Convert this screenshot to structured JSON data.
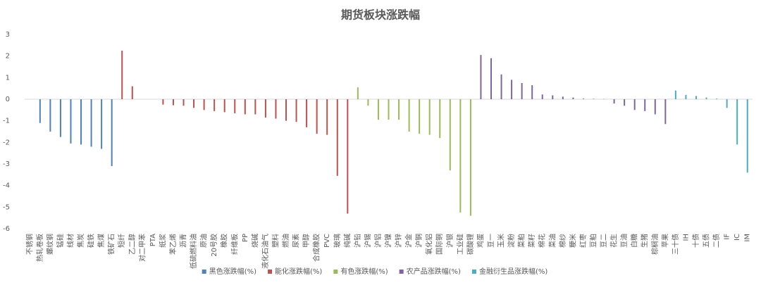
{
  "chart_data": {
    "type": "bar",
    "title": "期货板块涨跌幅",
    "categories": [
      "不锈钢",
      "热轧卷板",
      "螺纹钢",
      "锰硅",
      "线材",
      "焦炭",
      "硅铁",
      "焦煤",
      "铁矿石",
      "短纤",
      "乙二醇",
      "对二甲苯",
      "PTA",
      "纸浆",
      "苯乙烯",
      "沥青",
      "低硫燃料油",
      "原油",
      "20号胶",
      "橡胶",
      "纤维板",
      "PP",
      "烧碱",
      "液化石油气",
      "塑料",
      "燃油",
      "尿素",
      "甲醇",
      "合成橡胶",
      "PVC",
      "玻璃",
      "纯碱",
      "沪铅",
      "沪锡",
      "沪铝",
      "沪镍",
      "沪锌",
      "沪金",
      "沪铜",
      "氧化铝",
      "国际铜",
      "沪银",
      "工业硅",
      "碳酸锂",
      "鸡蛋",
      "豆一",
      "玉米",
      "淀粉",
      "菜粕",
      "菜籽",
      "棉花",
      "菜油",
      "棉纱",
      "粳米",
      "红枣",
      "豆粕",
      "豆二",
      "花生",
      "豆油",
      "白糖",
      "生猪",
      "棕榈油",
      "苹果",
      "三十债",
      "IH",
      "十债",
      "五债",
      "二债",
      "IF",
      "IC",
      "IM"
    ],
    "series": [
      {
        "name": "黑色涨跌幅(%)",
        "color": "#4f81bd",
        "values": [
          0,
          -1.1,
          -1.5,
          -1.75,
          -2.05,
          -2.1,
          -2.2,
          -2.3,
          -3.1,
          null,
          null,
          null,
          null,
          null,
          null,
          null,
          null,
          null,
          null,
          null,
          null,
          null,
          null,
          null,
          null,
          null,
          null,
          null,
          null,
          null,
          null,
          null,
          null,
          null,
          null,
          null,
          null,
          null,
          null,
          null,
          null,
          null,
          null,
          null,
          null,
          null,
          null,
          null,
          null,
          null,
          null,
          null,
          null,
          null,
          null,
          null,
          null,
          null,
          null,
          null,
          null,
          null,
          null,
          null,
          null,
          null,
          null,
          null,
          null,
          null,
          null
        ]
      },
      {
        "name": "能化涨跌幅(%)",
        "color": "#c0504d",
        "values": [
          null,
          null,
          null,
          null,
          null,
          null,
          null,
          null,
          null,
          2.25,
          0.6,
          0,
          0,
          -0.25,
          -0.28,
          -0.3,
          -0.4,
          -0.5,
          -0.55,
          -0.6,
          -0.65,
          -0.7,
          -0.7,
          -0.85,
          -0.9,
          -1.0,
          -1.05,
          -1.3,
          -1.6,
          -1.65,
          -3.55,
          -5.3,
          null,
          null,
          null,
          null,
          null,
          null,
          null,
          null,
          null,
          null,
          null,
          null,
          null,
          null,
          null,
          null,
          null,
          null,
          null,
          null,
          null,
          null,
          null,
          null,
          null,
          null,
          null,
          null,
          null,
          null,
          null,
          null,
          null,
          null,
          null,
          null,
          null,
          null,
          null
        ]
      },
      {
        "name": "有色涨跌幅(%)",
        "color": "#9bbb59",
        "values": [
          null,
          null,
          null,
          null,
          null,
          null,
          null,
          null,
          null,
          null,
          null,
          null,
          null,
          null,
          null,
          null,
          null,
          null,
          null,
          null,
          null,
          null,
          null,
          null,
          null,
          null,
          null,
          null,
          null,
          null,
          null,
          null,
          0.55,
          -0.3,
          -0.95,
          -0.95,
          -0.95,
          -1.5,
          -1.6,
          -1.65,
          -1.8,
          -3.3,
          -5.25,
          -5.4,
          null,
          null,
          null,
          null,
          null,
          null,
          null,
          null,
          null,
          null,
          null,
          null,
          null,
          null,
          null,
          null,
          null,
          null,
          null,
          null,
          null,
          null,
          null,
          null,
          null,
          null,
          null
        ]
      },
      {
        "name": "农产品涨跌幅(%)",
        "color": "#8064a2",
        "values": [
          null,
          null,
          null,
          null,
          null,
          null,
          null,
          null,
          null,
          null,
          null,
          null,
          null,
          null,
          null,
          null,
          null,
          null,
          null,
          null,
          null,
          null,
          null,
          null,
          null,
          null,
          null,
          null,
          null,
          null,
          null,
          null,
          null,
          null,
          null,
          null,
          null,
          null,
          null,
          null,
          null,
          null,
          null,
          null,
          2.05,
          1.9,
          1.15,
          0.9,
          0.75,
          0.65,
          0.22,
          0.18,
          0.12,
          0.08,
          0.03,
          0.02,
          0.01,
          -0.2,
          -0.3,
          -0.5,
          -0.55,
          -0.7,
          -1.15,
          null,
          null,
          null,
          null,
          null,
          null,
          null,
          null
        ]
      },
      {
        "name": "金融衍生品涨跌幅(%)",
        "color": "#4bacc6",
        "values": [
          null,
          null,
          null,
          null,
          null,
          null,
          null,
          null,
          null,
          null,
          null,
          null,
          null,
          null,
          null,
          null,
          null,
          null,
          null,
          null,
          null,
          null,
          null,
          null,
          null,
          null,
          null,
          null,
          null,
          null,
          null,
          null,
          null,
          null,
          null,
          null,
          null,
          null,
          null,
          null,
          null,
          null,
          null,
          null,
          null,
          null,
          null,
          null,
          null,
          null,
          null,
          null,
          null,
          null,
          null,
          null,
          null,
          null,
          null,
          null,
          null,
          null,
          null,
          0.4,
          0.2,
          0.15,
          0.08,
          0.03,
          -0.4,
          -2.1,
          -3.4
        ]
      }
    ],
    "ylim": [
      -6,
      3
    ],
    "yticks": [
      -6,
      -5,
      -4,
      -3,
      -2,
      -1,
      0,
      1,
      2,
      3
    ],
    "grid": false,
    "legend": "bottom"
  }
}
